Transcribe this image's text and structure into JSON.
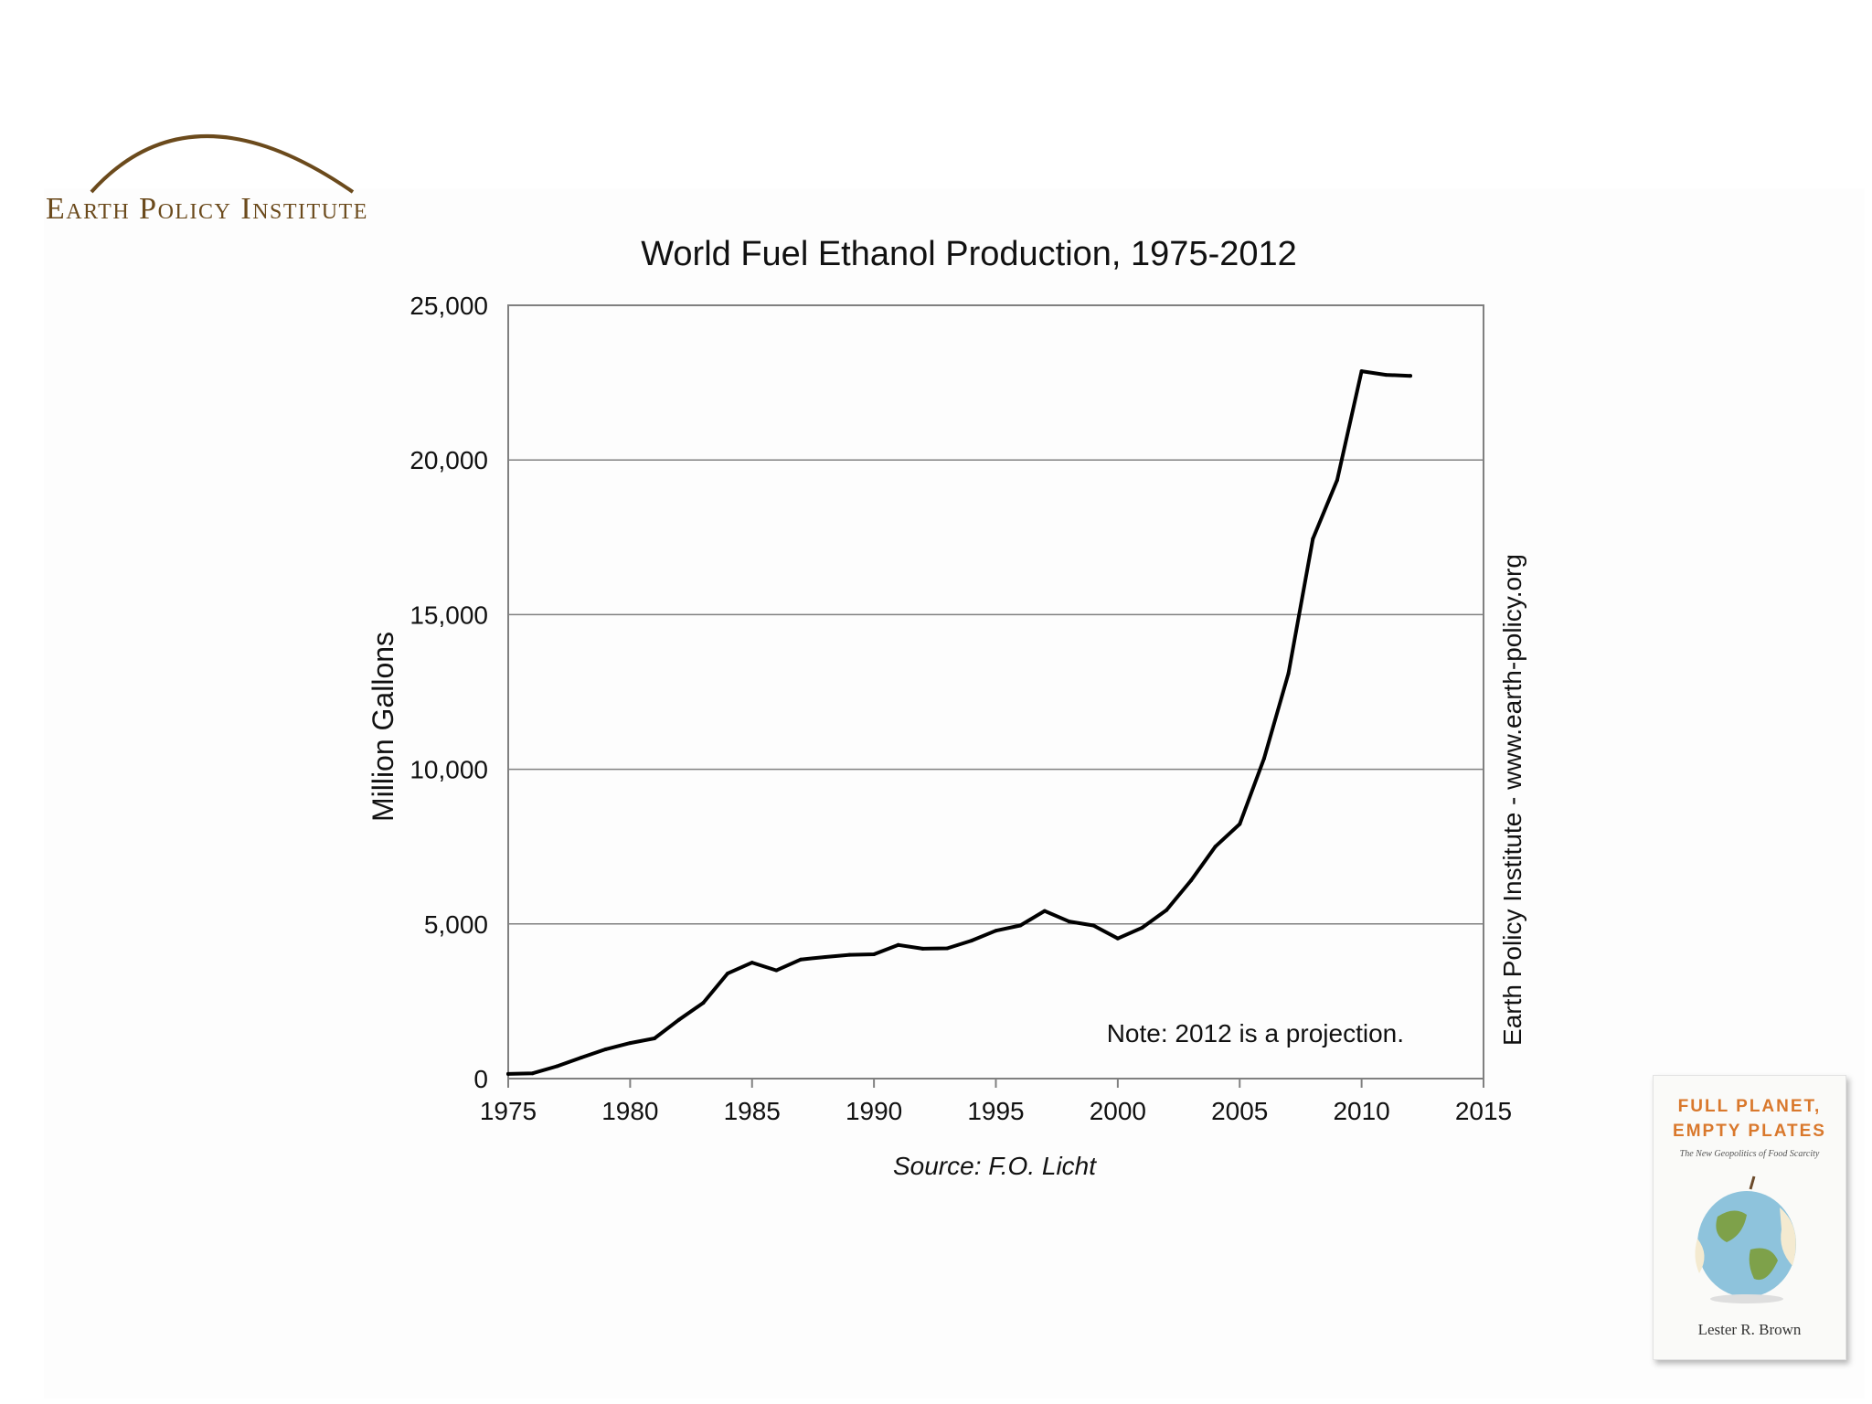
{
  "logo": {
    "text": "Earth Policy Institute",
    "arc_color": "#6b4a1c"
  },
  "chart_data": {
    "type": "line",
    "title": "World Fuel Ethanol Production, 1975-2012",
    "ylabel": "Million Gallons",
    "xlabel": "",
    "xlim": [
      1975,
      2015
    ],
    "ylim": [
      0,
      25000
    ],
    "x_ticks": [
      1975,
      1980,
      1985,
      1990,
      1995,
      2000,
      2005,
      2010,
      2015
    ],
    "x_tick_labels": [
      "1975",
      "1980",
      "1985",
      "1990",
      "1995",
      "2000",
      "2005",
      "2010",
      "2015"
    ],
    "y_ticks": [
      0,
      5000,
      10000,
      15000,
      20000,
      25000
    ],
    "y_tick_labels": [
      "0",
      "5,000",
      "10,000",
      "15,000",
      "20,000",
      "25,000"
    ],
    "grid": "horizontal",
    "line_color": "#000000",
    "series": [
      {
        "x": [
          1975,
          1976,
          1977,
          1978,
          1979,
          1980,
          1981,
          1982,
          1983,
          1984,
          1985,
          1986,
          1987,
          1988,
          1989,
          1990,
          1991,
          1992,
          1993,
          1994,
          1995,
          1996,
          1997,
          1998,
          1999,
          2000,
          2001,
          2002,
          2003,
          2004,
          2005,
          2006,
          2007,
          2008,
          2009,
          2010,
          2011,
          2012
        ],
        "values": [
          150,
          170,
          400,
          680,
          950,
          1150,
          1300,
          1900,
          2450,
          3400,
          3750,
          3500,
          3850,
          3930,
          4000,
          4020,
          4320,
          4200,
          4210,
          4460,
          4780,
          4950,
          5420,
          5080,
          4950,
          4530,
          4880,
          5450,
          6400,
          7500,
          8230,
          10350,
          13100,
          17450,
          19350,
          22870,
          22750,
          22720
        ]
      }
    ],
    "annotation": "Note: 2012 is a projection.",
    "source": "Source: F.O. Licht",
    "credit": "Earth Policy Institute - www.earth-policy.org"
  },
  "book": {
    "title_line1": "FULL PLANET,",
    "title_line2": "EMPTY PLATES",
    "subtitle": "The New Geopolitics of Food Scarcity",
    "author": "Lester R. Brown",
    "accent_color": "#d9782c"
  }
}
